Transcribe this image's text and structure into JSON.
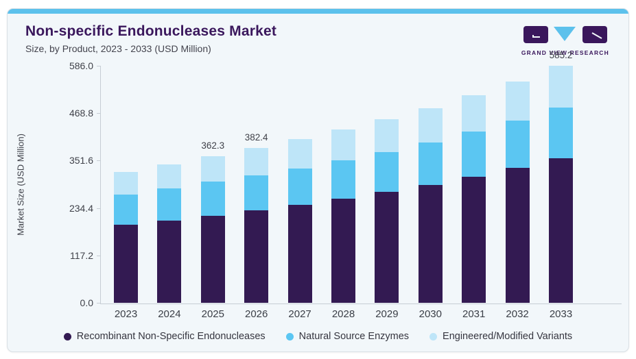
{
  "header": {
    "title": "Non-specific Endonucleases Market",
    "subtitle": "Size, by Product, 2023 - 2033 (USD Million)",
    "logo_text": "GRAND VIEW RESEARCH"
  },
  "colors": {
    "accent_strip": "#5cc1ec",
    "card_bg": "#f2f7fa",
    "title_purple": "#3a175c",
    "axis_line": "#c6cdd4",
    "series1": "#331a52",
    "series2": "#5bc6f2",
    "series3": "#bee5f8"
  },
  "chart_data": {
    "type": "bar",
    "stacked": true,
    "title": "Non-specific Endonucleases Market Size, by Product, 2023 - 2033 (USD Million)",
    "xlabel": "",
    "ylabel": "Market Size (USD Million)",
    "ylim": [
      0,
      586
    ],
    "yticks": [
      {
        "label": "586.0",
        "value": 586.0
      },
      {
        "label": "468.8",
        "value": 468.8
      },
      {
        "label": "351.6",
        "value": 351.6
      },
      {
        "label": "234.4",
        "value": 234.4
      },
      {
        "label": "117.2",
        "value": 117.2
      },
      {
        "label": "0.0",
        "value": 0.0
      }
    ],
    "categories": [
      "2023",
      "2024",
      "2025",
      "2026",
      "2027",
      "2028",
      "2029",
      "2030",
      "2031",
      "2032",
      "2033"
    ],
    "series": [
      {
        "name": "Recombinant Non-Specific Endonucleases",
        "color": "#331a52",
        "values": [
          192.9,
          202.9,
          214.5,
          228.4,
          241.4,
          257.4,
          275.1,
          291.6,
          312.4,
          334.2,
          358.0
        ]
      },
      {
        "name": "Natural Source Enzymes",
        "color": "#5bc6f2",
        "values": [
          73.9,
          79.9,
          84.5,
          87.0,
          90.5,
          94.6,
          98.2,
          105.5,
          111.3,
          116.1,
          124.8
        ]
      },
      {
        "name": "Engineered/Modified Variants",
        "color": "#bee5f8",
        "values": [
          56.2,
          59.2,
          63.3,
          67.0,
          72.3,
          75.8,
          81.1,
          83.9,
          89.3,
          96.9,
          102.4
        ]
      }
    ],
    "totals": [
      323.0,
      342.0,
      362.3,
      382.4,
      404.2,
      427.8,
      454.4,
      481.0,
      513.0,
      547.2,
      585.2
    ],
    "data_labels": {
      "2025": "362.3",
      "2026": "382.4",
      "2033": "585.2"
    },
    "grid": false,
    "legend_position": "bottom"
  }
}
